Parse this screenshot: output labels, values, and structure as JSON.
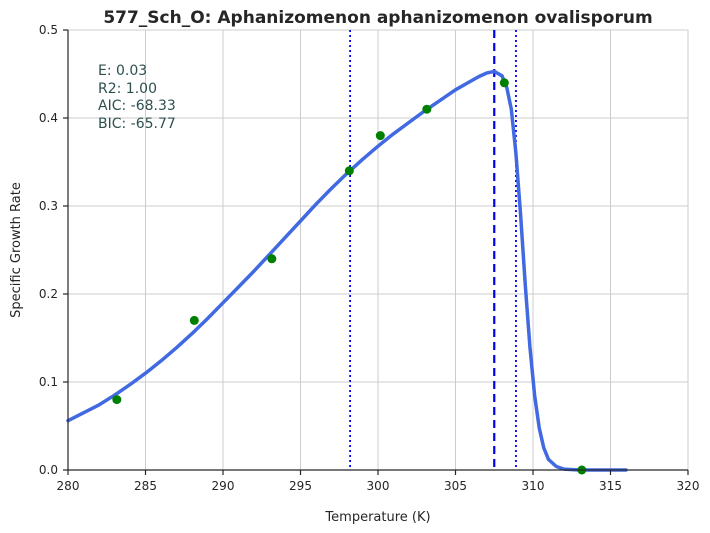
{
  "chart_data": {
    "type": "line",
    "title": "577_Sch_O: Aphanizomenon aphanizomenon ovalisporum",
    "xlabel": "Temperature (K)",
    "ylabel": "Specific Growth Rate",
    "xlim": [
      280,
      320
    ],
    "ylim": [
      0,
      0.5
    ],
    "xticks": [
      280,
      285,
      290,
      295,
      300,
      305,
      310,
      315,
      320
    ],
    "yticks": [
      0.0,
      0.1,
      0.2,
      0.3,
      0.4,
      0.5
    ],
    "grid": true,
    "observed_points": [
      {
        "x": 283.15,
        "y": 0.08
      },
      {
        "x": 288.15,
        "y": 0.17
      },
      {
        "x": 293.15,
        "y": 0.24
      },
      {
        "x": 298.15,
        "y": 0.34
      },
      {
        "x": 300.15,
        "y": 0.38
      },
      {
        "x": 303.15,
        "y": 0.41
      },
      {
        "x": 308.15,
        "y": 0.44
      },
      {
        "x": 313.15,
        "y": 0.0
      }
    ],
    "fitted_curve": {
      "x": [
        280,
        281,
        282,
        283,
        284,
        285,
        286,
        287,
        288,
        289,
        290,
        291,
        292,
        293,
        294,
        295,
        296,
        297,
        298,
        299,
        300,
        301,
        302,
        303,
        304,
        305,
        306,
        306.5,
        307,
        307.5,
        308,
        308.3,
        308.6,
        308.9,
        309.2,
        309.5,
        309.8,
        310.1,
        310.4,
        310.7,
        311,
        311.5,
        312,
        313,
        314,
        315,
        316
      ],
      "y": [
        0.056,
        0.065,
        0.074,
        0.085,
        0.097,
        0.11,
        0.124,
        0.139,
        0.155,
        0.172,
        0.19,
        0.208,
        0.226,
        0.245,
        0.264,
        0.283,
        0.302,
        0.32,
        0.337,
        0.353,
        0.368,
        0.382,
        0.395,
        0.408,
        0.42,
        0.432,
        0.442,
        0.447,
        0.451,
        0.453,
        0.448,
        0.435,
        0.41,
        0.36,
        0.29,
        0.21,
        0.14,
        0.085,
        0.048,
        0.025,
        0.012,
        0.004,
        0.001,
        0.0,
        0.0,
        0.0,
        0.0
      ]
    },
    "vlines": [
      {
        "x": 298.2,
        "style": "dotted"
      },
      {
        "x": 307.5,
        "style": "dashed"
      },
      {
        "x": 308.9,
        "style": "dotted"
      }
    ],
    "annotation": [
      "E:  0.03",
      "R2:  1.00",
      "AIC: -68.33",
      "BIC: -65.77"
    ],
    "colors": {
      "curve": "#4169e1",
      "points": "#008000",
      "vlines": "#0000ee",
      "grid": "#cccccc",
      "stats_text": "#2f4f4f"
    }
  }
}
